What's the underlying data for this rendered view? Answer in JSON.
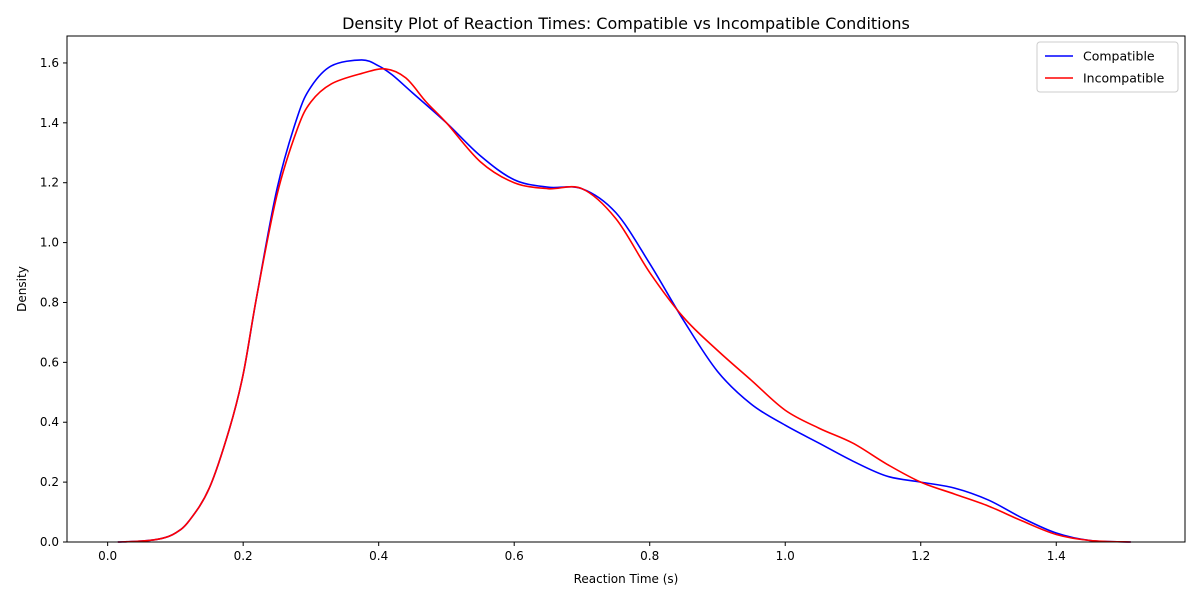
{
  "chart_data": {
    "type": "line",
    "title": "Density Plot of Reaction Times: Compatible vs Incompatible Conditions",
    "xlabel": "Reaction Time (s)",
    "ylabel": "Density",
    "xlim": [
      -0.06,
      1.59
    ],
    "ylim": [
      0,
      1.69
    ],
    "x_ticks": [
      "0.0",
      "0.2",
      "0.4",
      "0.6",
      "0.8",
      "1.0",
      "1.2",
      "1.4"
    ],
    "y_ticks": [
      "0.0",
      "0.2",
      "0.4",
      "0.6",
      "0.8",
      "1.0",
      "1.2",
      "1.4",
      "1.6"
    ],
    "grid": false,
    "legend_position": "top-right",
    "series": [
      {
        "name": "Compatible",
        "color": "#0000ff",
        "x": [
          0.015,
          0.05,
          0.08,
          0.1,
          0.12,
          0.15,
          0.18,
          0.2,
          0.22,
          0.25,
          0.28,
          0.3,
          0.33,
          0.375,
          0.4,
          0.42,
          0.45,
          0.5,
          0.55,
          0.6,
          0.65,
          0.7,
          0.75,
          0.8,
          0.85,
          0.9,
          0.95,
          1.0,
          1.05,
          1.1,
          1.15,
          1.2,
          1.25,
          1.3,
          1.35,
          1.4,
          1.45,
          1.51
        ],
        "y": [
          0.0,
          0.003,
          0.012,
          0.03,
          0.07,
          0.18,
          0.38,
          0.56,
          0.82,
          1.18,
          1.42,
          1.52,
          1.59,
          1.61,
          1.59,
          1.56,
          1.5,
          1.4,
          1.29,
          1.21,
          1.185,
          1.18,
          1.1,
          0.93,
          0.74,
          0.57,
          0.46,
          0.39,
          0.33,
          0.27,
          0.22,
          0.2,
          0.18,
          0.14,
          0.08,
          0.03,
          0.005,
          0.0
        ]
      },
      {
        "name": "Incompatible",
        "color": "#ff0000",
        "x": [
          0.015,
          0.05,
          0.08,
          0.1,
          0.12,
          0.15,
          0.18,
          0.2,
          0.22,
          0.25,
          0.28,
          0.3,
          0.33,
          0.375,
          0.41,
          0.44,
          0.47,
          0.5,
          0.55,
          0.6,
          0.65,
          0.7,
          0.75,
          0.8,
          0.85,
          0.9,
          0.95,
          1.0,
          1.05,
          1.1,
          1.15,
          1.2,
          1.25,
          1.3,
          1.35,
          1.4,
          1.45,
          1.51
        ],
        "y": [
          0.0,
          0.003,
          0.012,
          0.03,
          0.07,
          0.18,
          0.38,
          0.56,
          0.82,
          1.16,
          1.38,
          1.47,
          1.53,
          1.565,
          1.58,
          1.55,
          1.47,
          1.4,
          1.27,
          1.2,
          1.18,
          1.18,
          1.08,
          0.9,
          0.75,
          0.64,
          0.54,
          0.44,
          0.38,
          0.33,
          0.26,
          0.2,
          0.16,
          0.12,
          0.07,
          0.025,
          0.005,
          0.0
        ]
      }
    ]
  }
}
